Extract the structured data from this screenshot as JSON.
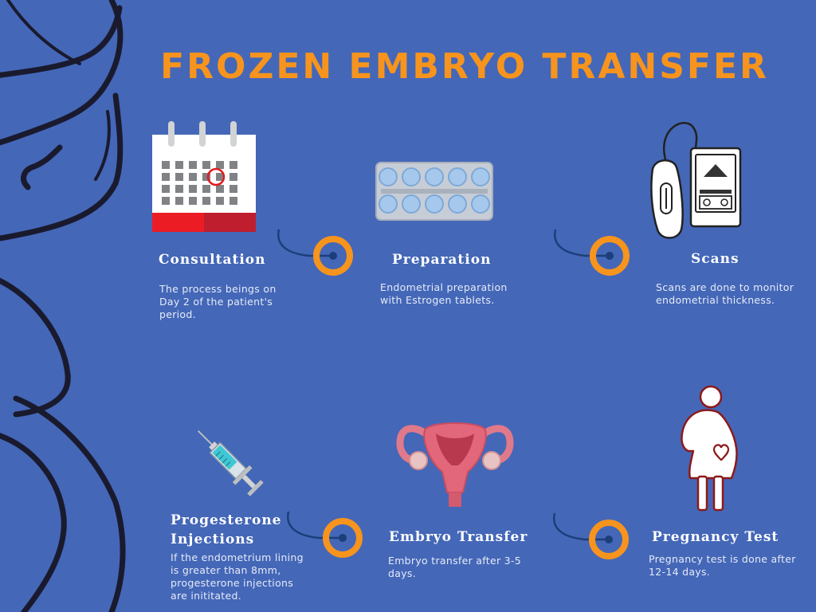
{
  "title": "FROZEN EMBRYO TRANSFER",
  "steps": [
    {
      "title": "Consultation",
      "description": "The process beings on Day 2 of the patient's period.",
      "icon": "calendar-icon"
    },
    {
      "title": "Preparation",
      "description": "Endometrial preparation with Estrogen tablets.",
      "icon": "pills-icon"
    },
    {
      "title": "Scans",
      "description": "Scans are done to monitor endometrial thickness.",
      "icon": "ultrasound-icon"
    },
    {
      "title": "Progesterone Injections",
      "description": "If the endometrium lining is greater than 8mm, progesterone injections are inititated.",
      "icon": "syringe-icon"
    },
    {
      "title": "Embryo Transfer",
      "description": "Embryo transfer after 3-5 days.",
      "icon": "uterus-icon"
    },
    {
      "title": "Pregnancy Test",
      "description": "Pregnancy test is done after 12-14 days.",
      "icon": "pregnant-woman-icon"
    }
  ],
  "colors": {
    "background": "#4467b8",
    "accent": "#f7941d",
    "text": "#ffffff",
    "line": "#1c3f7a"
  }
}
